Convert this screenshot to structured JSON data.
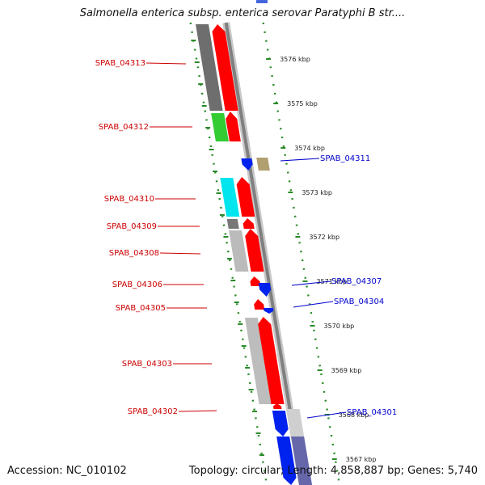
{
  "title": "Salmonella enterica subsp. enterica serovar Paratyphi B str....",
  "footer": {
    "accession": "Accession: NC_010102",
    "summary": "Topology: circular; Length: 4,858,887 bp; Genes: 5,740"
  },
  "colors": {
    "forward_strand_label": "#cc0000",
    "reverse_strand_label": "#0000cc",
    "forward_gene": "#ff0000",
    "reverse_gene": "#0022ee",
    "backbone": "#808080",
    "guide_dots": "#2a8a2a",
    "tick": "#2a8a2a"
  },
  "ticks": [
    {
      "label": "3576 kbp"
    },
    {
      "label": "3575 kbp"
    },
    {
      "label": "3574 kbp"
    },
    {
      "label": "3573 kbp"
    },
    {
      "label": "3572 kbp"
    },
    {
      "label": "3571 kbp"
    },
    {
      "label": "3570 kbp"
    },
    {
      "label": "3569 kbp"
    },
    {
      "label": "3568 kbp"
    },
    {
      "label": "3567 kbp"
    }
  ],
  "genes_left": [
    {
      "label": "SPAB_04313"
    },
    {
      "label": "SPAB_04312"
    },
    {
      "label": "SPAB_04310"
    },
    {
      "label": "SPAB_04309"
    },
    {
      "label": "SPAB_04308"
    },
    {
      "label": "SPAB_04306"
    },
    {
      "label": "SPAB_04305"
    },
    {
      "label": "SPAB_04303"
    },
    {
      "label": "SPAB_04302"
    }
  ],
  "genes_right": [
    {
      "label": "SPAB_04311"
    },
    {
      "label": "SPAB_04307"
    },
    {
      "label": "SPAB_04304"
    },
    {
      "label": "SPAB_04301"
    }
  ]
}
